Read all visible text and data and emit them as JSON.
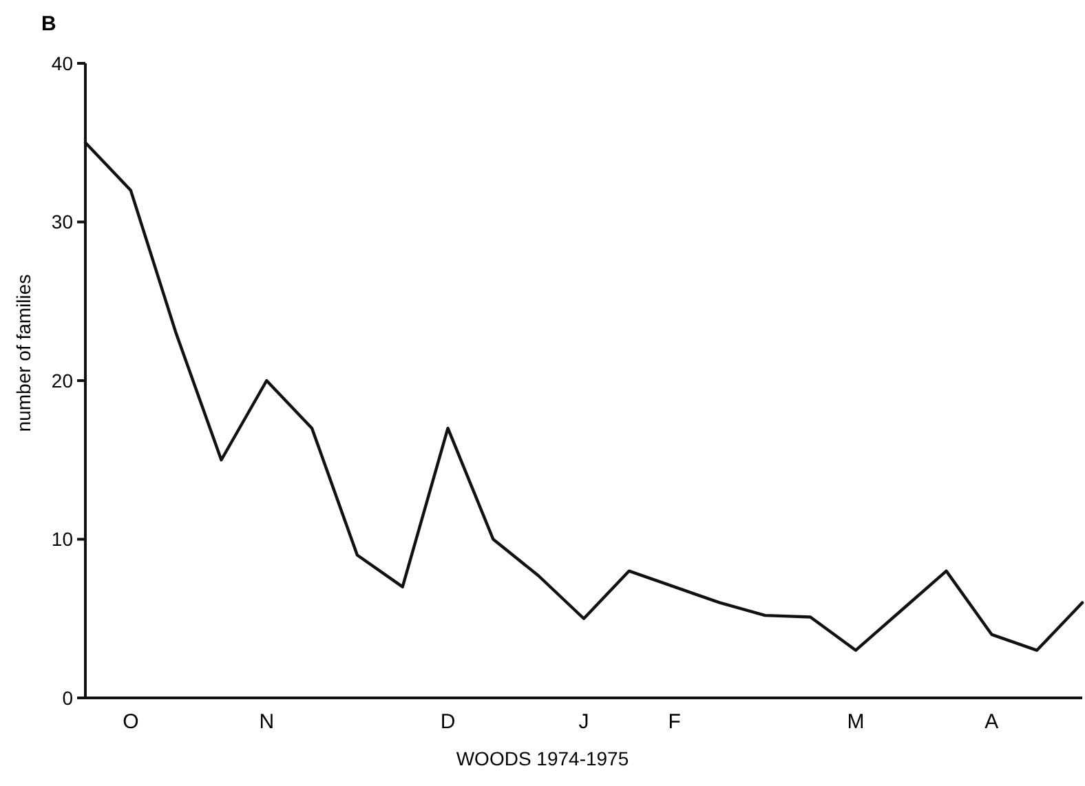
{
  "chart_data": {
    "type": "line",
    "title": "B",
    "xlabel": "WOODS 1974-1975",
    "ylabel": "number of families",
    "categories": [
      null,
      "O",
      null,
      null,
      "N",
      null,
      null,
      null,
      "D",
      null,
      null,
      "J",
      null,
      "F",
      null,
      null,
      null,
      "M",
      null,
      null,
      "A",
      null,
      null
    ],
    "series": [
      {
        "color": "#111111",
        "values": [
          35,
          32,
          23,
          15,
          20,
          17,
          9,
          7,
          17,
          10,
          7.7,
          5,
          8,
          7,
          6,
          5.2,
          5.1,
          3,
          5.5,
          8,
          4,
          3,
          6
        ]
      }
    ],
    "ylim": [
      0,
      40
    ],
    "yticks": [
      0,
      10,
      20,
      30,
      40
    ],
    "grid": false,
    "marker": "none",
    "line_style": "solid"
  }
}
